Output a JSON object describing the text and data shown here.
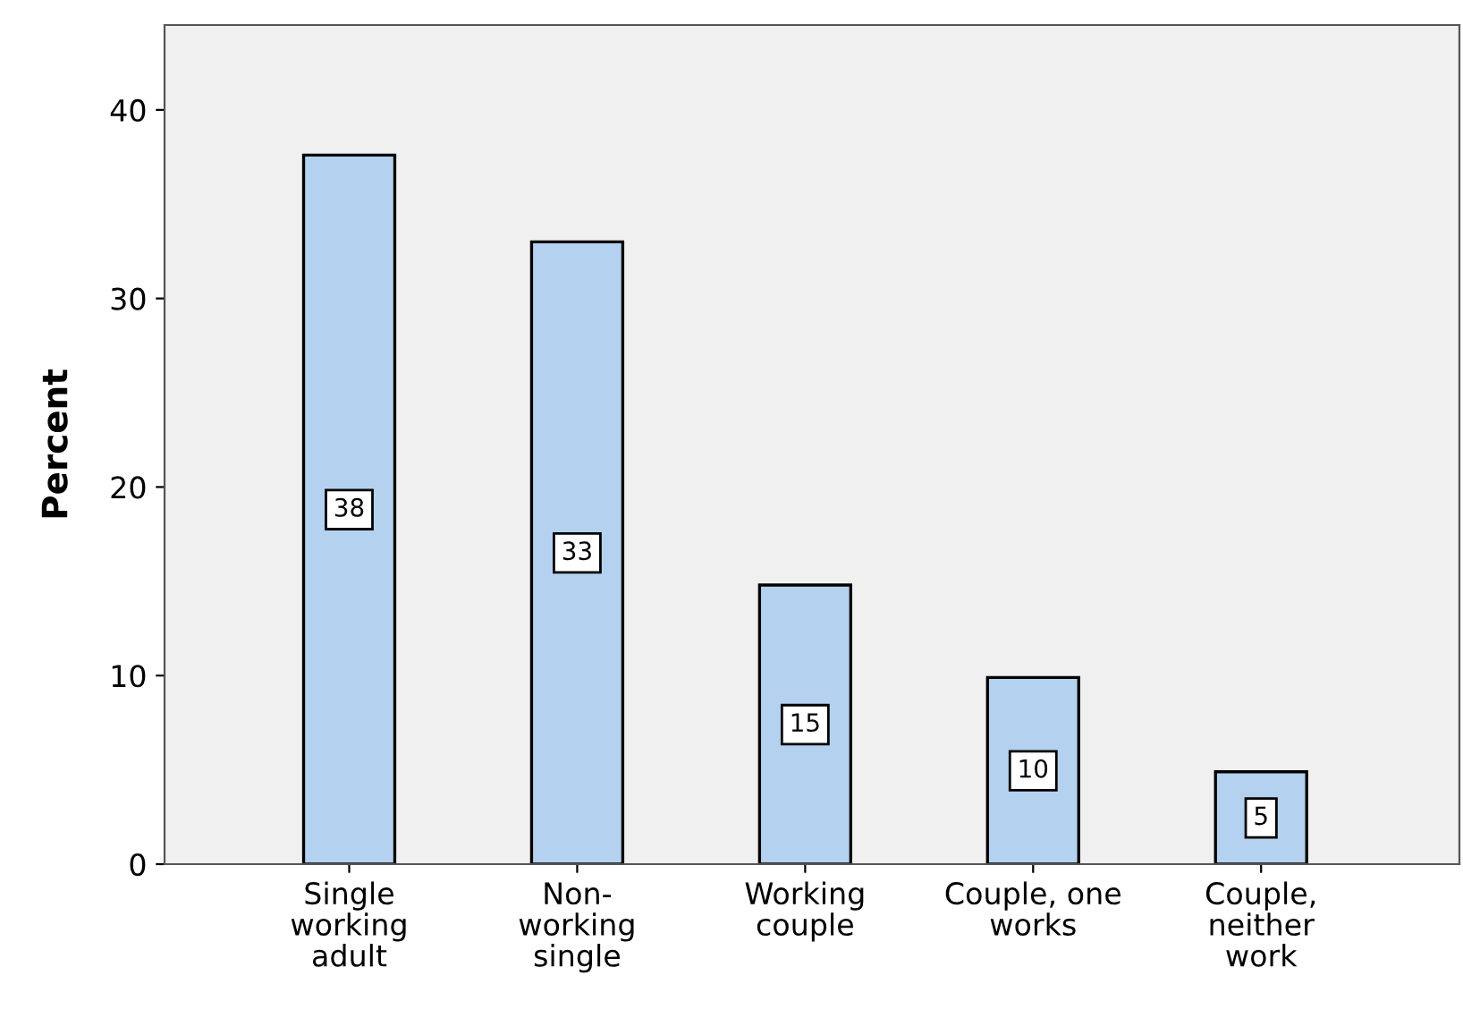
{
  "chart_data": {
    "type": "bar",
    "ylabel": "Percent",
    "categories": [
      "Single\nworking\nadult",
      "Non-\nworking\nsingle",
      "Working\ncouple",
      "Couple, one\nworks",
      "Couple,\nneither\nwork"
    ],
    "values": [
      37.6,
      33.0,
      14.8,
      9.9,
      4.9
    ],
    "value_labels": [
      "38",
      "33",
      "15",
      "10",
      "5"
    ],
    "color": "#b4d2ef",
    "ylim": [
      0,
      44.5
    ],
    "yticks": [
      0,
      10,
      20,
      30,
      40
    ],
    "grid": false,
    "legend": false
  }
}
